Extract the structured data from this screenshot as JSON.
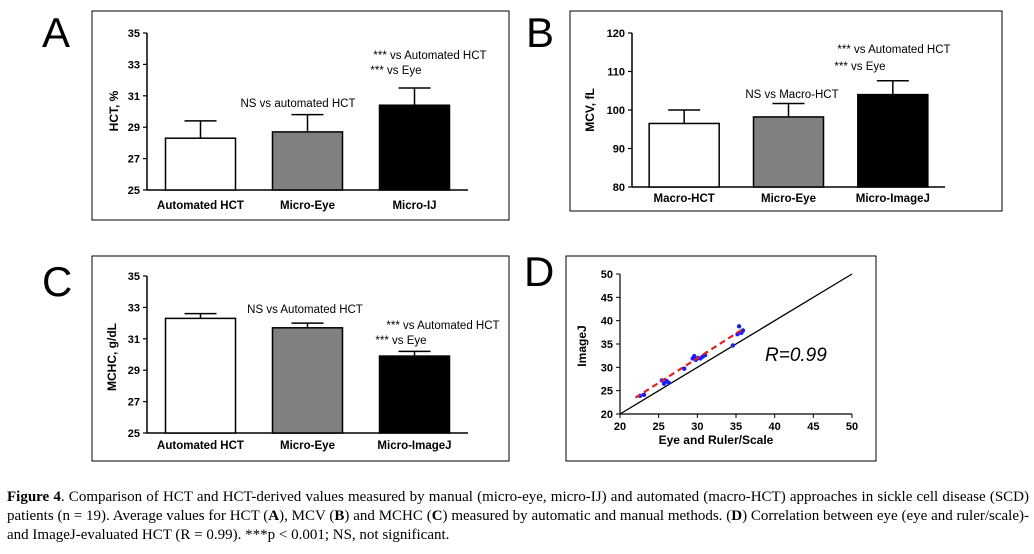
{
  "panels": {
    "A": {
      "letter": "A"
    },
    "B": {
      "letter": "B"
    },
    "C": {
      "letter": "C"
    },
    "D": {
      "letter": "D"
    }
  },
  "chart_data": [
    {
      "panel": "A",
      "type": "bar",
      "categories": [
        "Automated HCT",
        "Micro-Eye",
        "Micro-IJ"
      ],
      "values": [
        28.3,
        28.7,
        30.4
      ],
      "errors": [
        1.1,
        1.1,
        1.1
      ],
      "colors": [
        "#ffffff",
        "#808080",
        "#000000"
      ],
      "ylabel": "HCT, %",
      "ylim": [
        25,
        35
      ],
      "yticks": [
        "25",
        "27",
        "29",
        "31",
        "33",
        "35"
      ],
      "annotations": [
        "NS vs automated HCT",
        "*** vs Automated HCT",
        "*** vs Eye"
      ]
    },
    {
      "panel": "B",
      "type": "bar",
      "categories": [
        "Macro-HCT",
        "Micro-Eye",
        "Micro-ImageJ"
      ],
      "values": [
        96.5,
        98.2,
        104.0
      ],
      "errors": [
        3.5,
        3.5,
        3.6
      ],
      "colors": [
        "#ffffff",
        "#808080",
        "#000000"
      ],
      "ylabel": "MCV, fL",
      "ylim": [
        80,
        120
      ],
      "yticks": [
        "80",
        "90",
        "100",
        "110",
        "120"
      ],
      "annotations": [
        "NS vs Macro-HCT",
        "*** vs Automated HCT",
        "*** vs Eye"
      ]
    },
    {
      "panel": "C",
      "type": "bar",
      "categories": [
        "Automated HCT",
        "Micro-Eye",
        "Micro-ImageJ"
      ],
      "values": [
        32.3,
        31.7,
        29.9
      ],
      "errors": [
        0.3,
        0.3,
        0.3
      ],
      "colors": [
        "#ffffff",
        "#808080",
        "#000000"
      ],
      "ylabel": "MCHC, g/dL",
      "ylim": [
        25,
        35
      ],
      "yticks": [
        "25",
        "27",
        "29",
        "31",
        "33",
        "35"
      ],
      "annotations": [
        "NS vs Automated HCT",
        "*** vs Automated HCT",
        "*** vs Eye"
      ]
    },
    {
      "panel": "D",
      "type": "scatter",
      "xlabel": "Eye and Ruler/Scale",
      "ylabel": "ImageJ",
      "xlim": [
        20,
        50
      ],
      "ylim": [
        20,
        50
      ],
      "xticks": [
        "20",
        "25",
        "30",
        "35",
        "40",
        "45",
        "50"
      ],
      "yticks": [
        "20",
        "25",
        "30",
        "35",
        "40",
        "45",
        "50"
      ],
      "points": [
        {
          "x": 22.6,
          "y": 23.9
        },
        {
          "x": 23.1,
          "y": 24.1
        },
        {
          "x": 25.4,
          "y": 27.2
        },
        {
          "x": 25.7,
          "y": 26.5
        },
        {
          "x": 26.0,
          "y": 27.1
        },
        {
          "x": 26.3,
          "y": 26.7
        },
        {
          "x": 28.3,
          "y": 29.7
        },
        {
          "x": 29.4,
          "y": 31.9
        },
        {
          "x": 29.6,
          "y": 32.4
        },
        {
          "x": 29.8,
          "y": 31.6
        },
        {
          "x": 30.1,
          "y": 32.0
        },
        {
          "x": 30.4,
          "y": 31.9
        },
        {
          "x": 30.7,
          "y": 32.3
        },
        {
          "x": 31.0,
          "y": 32.6
        },
        {
          "x": 34.6,
          "y": 34.7
        },
        {
          "x": 35.2,
          "y": 37.1
        },
        {
          "x": 35.4,
          "y": 38.8
        },
        {
          "x": 35.7,
          "y": 37.4
        },
        {
          "x": 35.9,
          "y": 37.9
        }
      ],
      "identity_line": {
        "from": [
          20,
          20
        ],
        "to": [
          50,
          50
        ]
      },
      "fit_line": {
        "from": [
          22,
          23.5
        ],
        "to": [
          36,
          38.3
        ]
      },
      "annotation": "R=0.99"
    }
  ],
  "caption": {
    "figure_label": "Figure 4",
    "part1": ". Comparison of HCT and HCT-derived values measured by manual (micro-eye, micro-IJ) and automated (macro-HCT) approaches in sickle cell disease (SCD) patients (n = 19). Average values for HCT (",
    "A": "A",
    "part2": "), MCV (",
    "B": "B",
    "part3": ") and MCHC (",
    "C": "C",
    "part4": ") measured by automatic and manual methods. (",
    "D": "D",
    "part5": ") Correlation between eye (eye and ruler/scale)- and ImageJ-evaluated HCT (R = 0.99). ***p < 0.001; NS, not significant."
  }
}
